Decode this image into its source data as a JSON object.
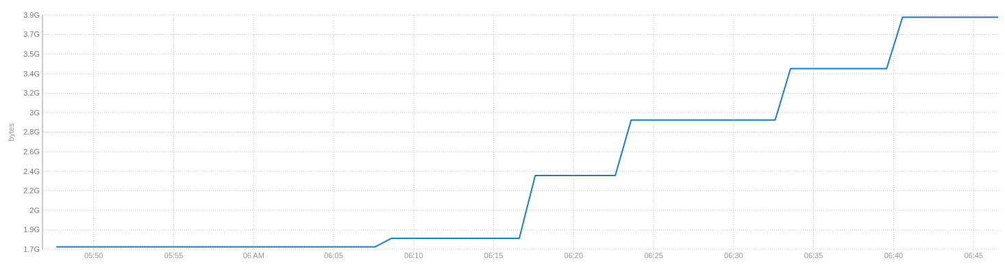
{
  "chart_data": {
    "type": "line",
    "ylabel": "bytes",
    "x": [
      5.7944,
      6.1042,
      6.1267,
      6.1433,
      6.2767,
      6.2933,
      6.3767,
      6.3933,
      6.5433,
      6.5593,
      6.6594,
      6.676,
      6.7757
    ],
    "series": [
      {
        "color": "#1f77b4",
        "values": [
          1.7,
          1.7,
          1.7,
          1.78,
          1.78,
          2.38,
          2.38,
          2.91,
          2.91,
          3.4,
          3.4,
          3.89,
          3.89
        ]
      }
    ],
    "xlim": [
      5.78,
      6.777
    ],
    "xticks": [
      {
        "value": 5.8333,
        "label": "05:50"
      },
      {
        "value": 5.9167,
        "label": "05:55"
      },
      {
        "value": 6,
        "label": "06 AM"
      },
      {
        "value": 6.0833,
        "label": "06:05"
      },
      {
        "value": 6.1667,
        "label": "06:10"
      },
      {
        "value": 6.25,
        "label": "06:15"
      },
      {
        "value": 6.3333,
        "label": "06:20"
      },
      {
        "value": 6.4167,
        "label": "06:25"
      },
      {
        "value": 6.5,
        "label": "06:30"
      },
      {
        "value": 6.5833,
        "label": "06:35"
      },
      {
        "value": 6.6667,
        "label": "06:40"
      },
      {
        "value": 6.75,
        "label": "06:45"
      }
    ],
    "ylim": [
      1.6764,
      3.9116
    ],
    "yticks": [
      {
        "value": 1.6764,
        "label": "1.7G"
      },
      {
        "value": 1.8626,
        "label": "1.9G"
      },
      {
        "value": 2.0489,
        "label": "2G"
      },
      {
        "value": 2.2352,
        "label": "2.2G"
      },
      {
        "value": 2.4214,
        "label": "2.4G"
      },
      {
        "value": 2.6077,
        "label": "2.6G"
      },
      {
        "value": 2.794,
        "label": "2.8G"
      },
      {
        "value": 2.9802,
        "label": "3G"
      },
      {
        "value": 3.1665,
        "label": "3.2G"
      },
      {
        "value": 3.3528,
        "label": "3.4G"
      },
      {
        "value": 3.539,
        "label": "3.5G"
      },
      {
        "value": 3.7253,
        "label": "3.7G"
      },
      {
        "value": 3.9116,
        "label": "3.9G"
      }
    ],
    "grid": true,
    "line_style": "solid",
    "marker": "none"
  }
}
